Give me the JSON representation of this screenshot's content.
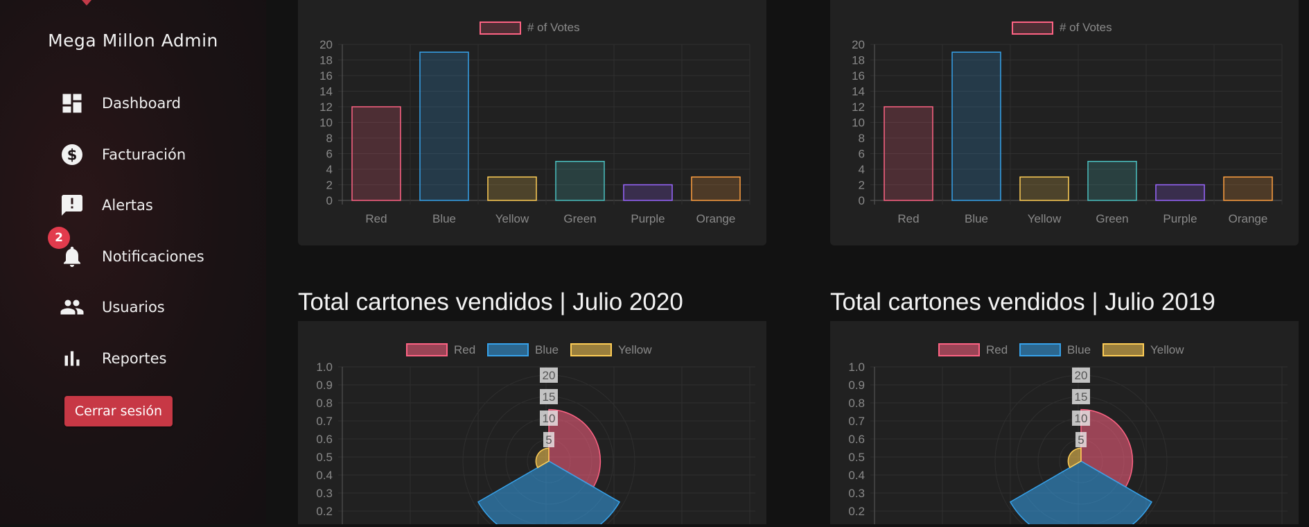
{
  "sidebar": {
    "brand": "Mega Millon Admin",
    "nav": [
      {
        "label": "Dashboard",
        "icon": "dashboard-icon"
      },
      {
        "label": "Facturación",
        "icon": "dollar-coin-icon"
      },
      {
        "label": "Alertas",
        "icon": "alert-message-icon"
      },
      {
        "label": "Notificaciones",
        "icon": "bell-icon"
      },
      {
        "label": "Usuarios",
        "icon": "users-icon"
      },
      {
        "label": "Reportes",
        "icon": "bar-chart-icon"
      }
    ],
    "notification_badge": "2",
    "logout_label": "Cerrar sesión"
  },
  "sections": {
    "left_title": "Total cartones vendidos | Julio 2020",
    "right_title": "Total cartones vendidos | Julio 2019"
  },
  "chart_data": [
    {
      "type": "bar",
      "legend": [
        "# of Votes"
      ],
      "categories": [
        "Red",
        "Blue",
        "Yellow",
        "Green",
        "Purple",
        "Orange"
      ],
      "values": [
        12,
        19,
        3,
        5,
        2,
        3
      ],
      "ylim": [
        0,
        20
      ],
      "yticks": [
        "0",
        "2",
        "4",
        "6",
        "8",
        "10",
        "12",
        "14",
        "16",
        "18",
        "20"
      ],
      "grid": true,
      "legend_position": "top"
    },
    {
      "type": "bar",
      "legend": [
        "# of Votes"
      ],
      "categories": [
        "Red",
        "Blue",
        "Yellow",
        "Green",
        "Purple",
        "Orange"
      ],
      "values": [
        12,
        19,
        3,
        5,
        2,
        3
      ],
      "ylim": [
        0,
        20
      ],
      "yticks": [
        "0",
        "2",
        "4",
        "6",
        "8",
        "10",
        "12",
        "14",
        "16",
        "18",
        "20"
      ],
      "grid": true,
      "legend_position": "top"
    },
    {
      "type": "polarArea",
      "title": "Total cartones vendidos | Julio 2020",
      "legend": [
        "Red",
        "Blue",
        "Yellow"
      ],
      "values": [
        12,
        19,
        3
      ],
      "rticks": [
        "5",
        "10",
        "15",
        "20"
      ],
      "yticks": [
        "1.0",
        "0.9",
        "0.8",
        "0.7",
        "0.6",
        "0.5",
        "0.4",
        "0.3",
        "0.2"
      ],
      "legend_position": "top"
    },
    {
      "type": "polarArea",
      "title": "Total cartones vendidos | Julio 2019",
      "legend": [
        "Red",
        "Blue",
        "Yellow"
      ],
      "values": [
        12,
        19,
        3
      ],
      "rticks": [
        "5",
        "10",
        "15",
        "20"
      ],
      "yticks": [
        "1.0",
        "0.9",
        "0.8",
        "0.7",
        "0.6",
        "0.5",
        "0.4",
        "0.3",
        "0.2"
      ],
      "legend_position": "top"
    }
  ],
  "colors": {
    "red": "#ff6384",
    "blue": "#36a2eb",
    "yellow": "#ffce56",
    "green": "#4bc0c0",
    "purple": "#9966ff",
    "orange": "#ff9f40",
    "accent": "#c73845"
  }
}
